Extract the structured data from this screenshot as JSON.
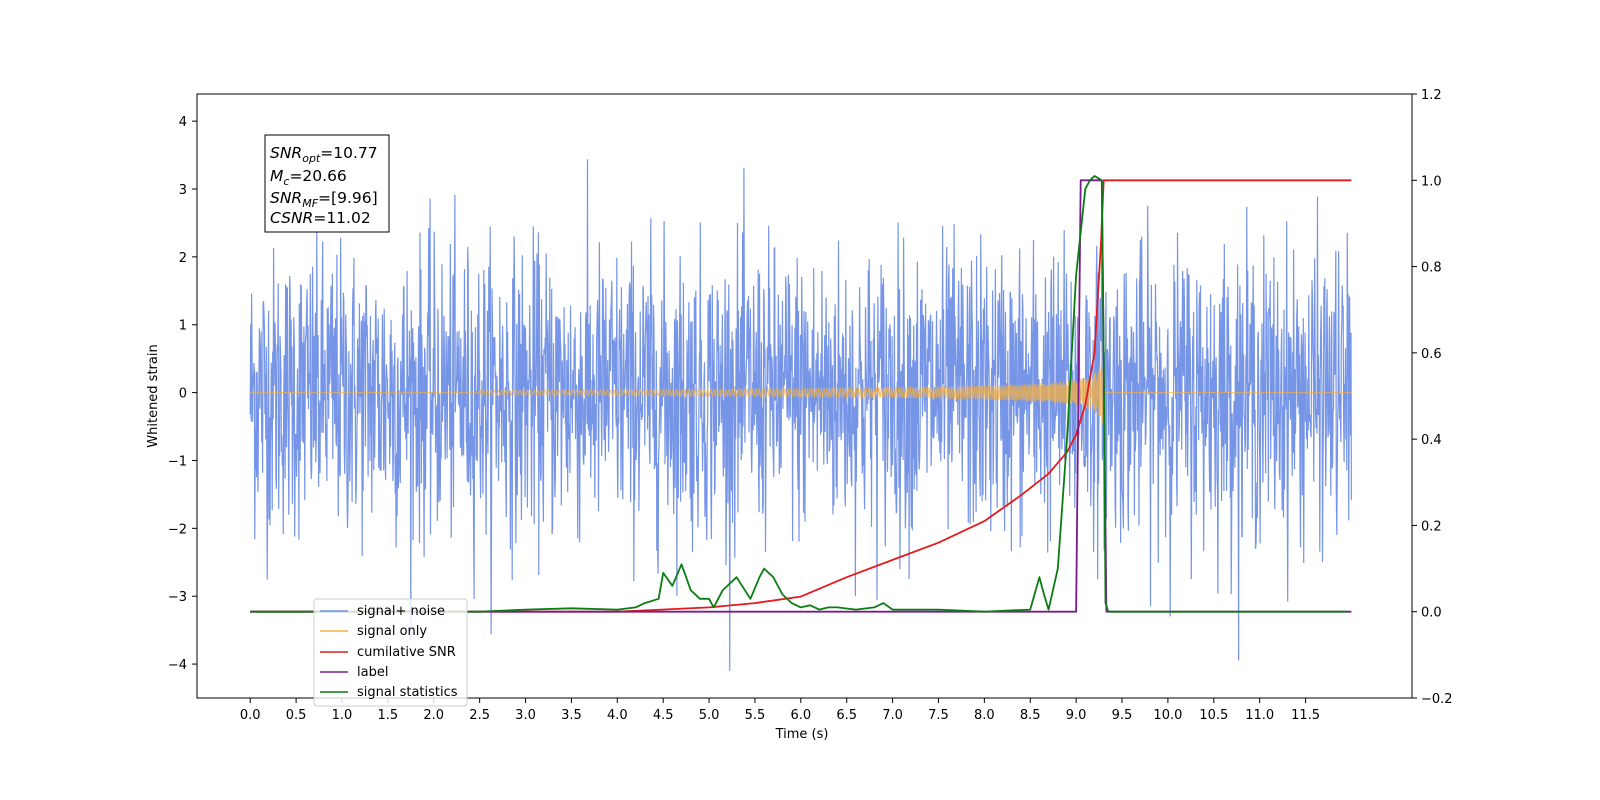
{
  "chart_data": {
    "type": "line",
    "xlabel": "Time (s)",
    "ylabel": "Whitened strain",
    "xlim": [
      -0.58,
      12.66
    ],
    "ylim": [
      -4.5,
      4.4
    ],
    "ylim_right": [
      -0.2,
      1.2
    ],
    "x_ticks": [
      "0.0",
      "0.5",
      "1.0",
      "1.5",
      "2.0",
      "2.5",
      "3.0",
      "3.5",
      "4.0",
      "4.5",
      "5.0",
      "5.5",
      "6.0",
      "6.5",
      "7.0",
      "7.5",
      "8.0",
      "8.5",
      "9.0",
      "9.5",
      "10.0",
      "10.5",
      "11.0",
      "11.5"
    ],
    "y_ticks_left": [
      "4",
      "3",
      "2",
      "1",
      "0",
      "−1",
      "−2",
      "−3",
      "−4"
    ],
    "y_ticks_right": [
      "1.2",
      "1.0",
      "0.8",
      "0.6",
      "0.4",
      "0.2",
      "0.0",
      "−0.2"
    ],
    "grid": false,
    "legend_position": "lower-left",
    "annotation": {
      "snr_opt": {
        "sym": "SNR",
        "sub": "opt",
        "val": "=10.77"
      },
      "mc": {
        "sym": "M",
        "sub": "c",
        "val": "=20.66"
      },
      "snr_mf": {
        "sym": "SNR",
        "sub": "MF",
        "val": "=[9.96]"
      },
      "csnr": {
        "sym": "CSNR",
        "val": "=11.02"
      }
    },
    "series": [
      {
        "name": "signal+ noise",
        "color": "#6f8fe6",
        "axis": "left",
        "description": "whitened noise band spanning roughly -4.1 to 4.0, t = 0 to 12"
      },
      {
        "name": "signal only",
        "color": "#f5b041",
        "axis": "left",
        "description": "chirp growing to amplitude ~1 near merger at t = 9.3, zero otherwise"
      },
      {
        "name": "cumilative SNR",
        "color": "#e41a1c",
        "axis": "right",
        "x": [
          0,
          4.0,
          5.0,
          5.5,
          6.0,
          6.5,
          7.0,
          7.5,
          8.0,
          8.4,
          8.7,
          8.9,
          9.0,
          9.1,
          9.2,
          9.27,
          9.3,
          12.0
        ],
        "y": [
          0,
          0,
          0.01,
          0.02,
          0.035,
          0.08,
          0.12,
          0.16,
          0.21,
          0.27,
          0.32,
          0.37,
          0.41,
          0.48,
          0.6,
          0.85,
          1.0,
          1.0
        ]
      },
      {
        "name": "label",
        "color": "#7b1a8c",
        "axis": "right",
        "x": [
          0,
          9.0,
          9.05,
          9.28,
          9.33,
          12.0
        ],
        "y": [
          0,
          0,
          1.0,
          1.0,
          0,
          0
        ]
      },
      {
        "name": "signal statistics",
        "color": "#0a7d12",
        "axis": "right",
        "x": [
          0,
          2.5,
          3.0,
          3.5,
          4.0,
          4.2,
          4.3,
          4.45,
          4.5,
          4.6,
          4.7,
          4.8,
          4.9,
          5.0,
          5.05,
          5.15,
          5.3,
          5.45,
          5.55,
          5.6,
          5.7,
          5.8,
          5.9,
          6.0,
          6.1,
          6.2,
          6.3,
          6.4,
          6.6,
          6.8,
          6.9,
          7.0,
          7.5,
          8.0,
          8.5,
          8.6,
          8.65,
          8.7,
          8.8,
          8.9,
          9.0,
          9.1,
          9.15,
          9.2,
          9.28,
          9.3,
          9.32,
          9.35,
          9.5,
          11.95
        ],
        "y": [
          0,
          0,
          0.005,
          0.008,
          0.005,
          0.01,
          0.02,
          0.03,
          0.09,
          0.06,
          0.11,
          0.05,
          0.03,
          0.03,
          0.01,
          0.05,
          0.08,
          0.03,
          0.08,
          0.1,
          0.08,
          0.04,
          0.02,
          0.01,
          0.015,
          0.005,
          0.01,
          0.01,
          0.005,
          0.01,
          0.02,
          0.005,
          0.005,
          0.0,
          0.005,
          0.08,
          0.04,
          0.005,
          0.1,
          0.4,
          0.78,
          0.98,
          1.0,
          1.01,
          1.0,
          0.6,
          0.02,
          0.0,
          0.0,
          0.0
        ]
      }
    ]
  }
}
